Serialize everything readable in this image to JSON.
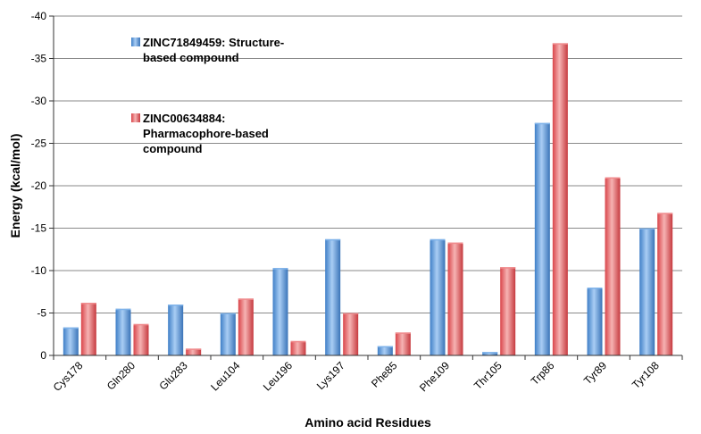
{
  "chart_data": {
    "type": "bar",
    "title": "",
    "xlabel": "Amino acid Residues",
    "ylabel": "Energy (kcal/mol)",
    "ylim": [
      0,
      -40
    ],
    "yticks": [
      "0",
      "-5",
      "-10",
      "-15",
      "-20",
      "-25",
      "-30",
      "-35",
      "-40"
    ],
    "ytick_values": [
      0,
      -5,
      -10,
      -15,
      -20,
      -25,
      -30,
      -35,
      -40
    ],
    "inverted_axis": true,
    "categories": [
      "Cys178",
      "Gln280",
      "Glu283",
      "Leu104",
      "Leu196",
      "Lys197",
      "Phe85",
      "Phe109",
      "Thr105",
      "Trp86",
      "Tyr89",
      "Tyr108"
    ],
    "series": [
      {
        "name": "ZINC71849459: Structure-based compound",
        "legend_lines": [
          "ZINC71849459: Structure-",
          "based compound"
        ],
        "color": "#5b9bd5",
        "values": [
          -3.3,
          -5.5,
          -6.0,
          -5.0,
          -10.3,
          -13.7,
          -1.1,
          -13.7,
          -0.4,
          -27.4,
          -8.0,
          -15.0
        ]
      },
      {
        "name": "ZINC00634884: Pharmacophore-based compound",
        "legend_lines": [
          "ZINC00634884:",
          "Pharmacophore-based",
          "compound"
        ],
        "color": "#e8696b",
        "values": [
          -6.2,
          -3.7,
          -0.8,
          -6.7,
          -1.7,
          -5.0,
          -2.7,
          -13.3,
          -10.4,
          -36.8,
          -21.0,
          -16.8
        ]
      }
    ],
    "legend_position": "top-left-inside",
    "grid": true
  }
}
